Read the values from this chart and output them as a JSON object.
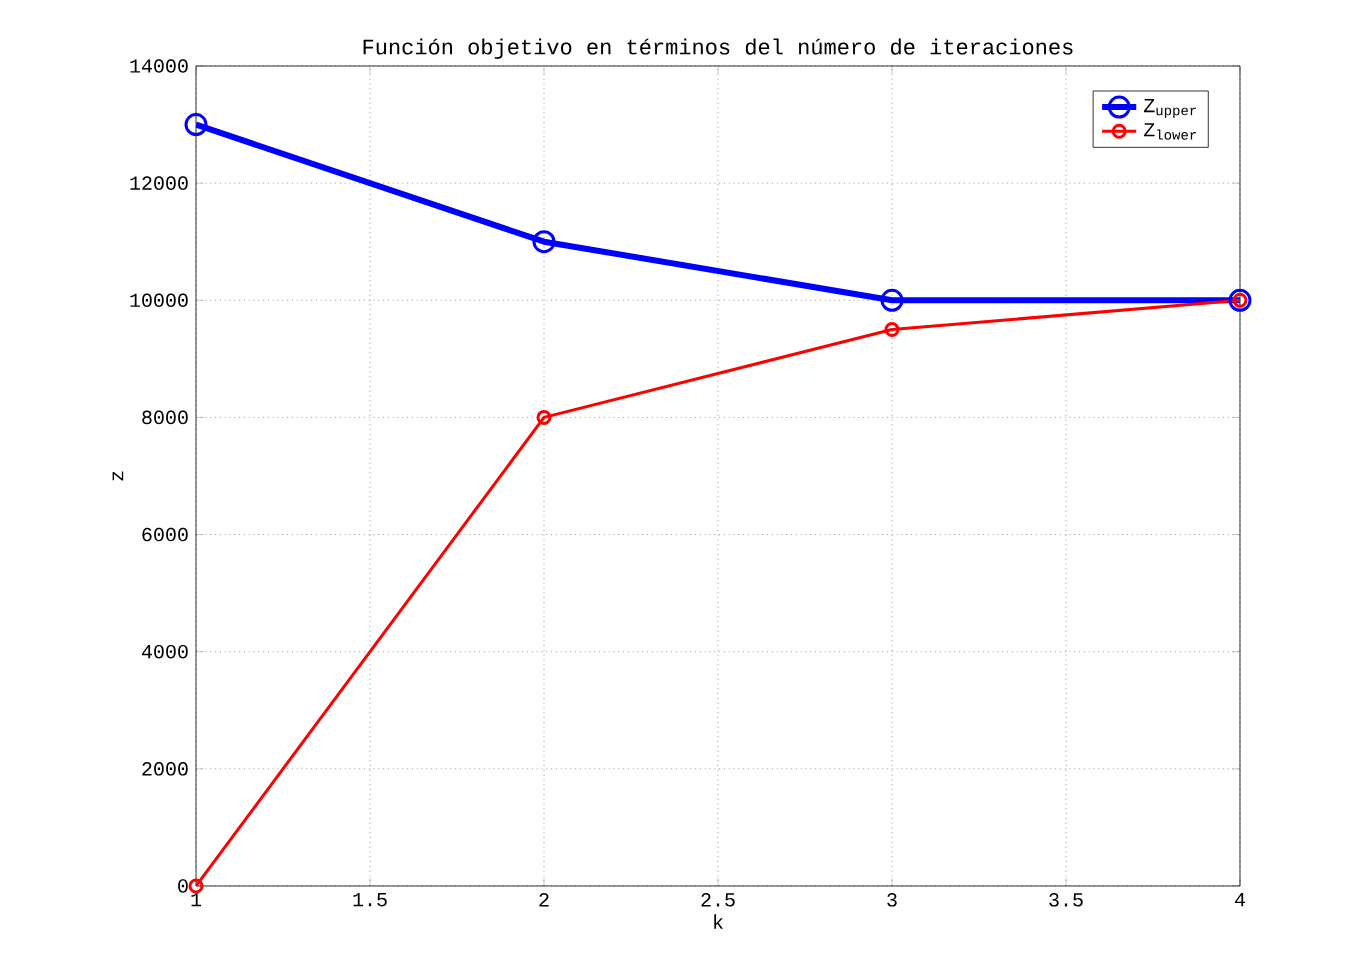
{
  "chart_data": {
    "type": "line",
    "title": "Función objetivo en términos del número de iteraciones",
    "xlabel": "k",
    "ylabel": "z",
    "x": [
      1,
      2,
      3,
      4
    ],
    "series": [
      {
        "name": "Z$_{upper}$",
        "color": "#0000ff",
        "values": [
          13000,
          11000,
          10000,
          10000
        ]
      },
      {
        "name": "Z$_{lower}$",
        "color": "#ff0000",
        "values": [
          0,
          8000,
          9500,
          10000
        ]
      }
    ],
    "xlim": [
      1,
      4
    ],
    "xticks": [
      1,
      1.5,
      2,
      2.5,
      3,
      3.5,
      4
    ],
    "ylim": [
      0,
      14000
    ],
    "yticks": [
      0,
      2000,
      4000,
      6000,
      8000,
      10000,
      12000,
      14000
    ],
    "grid": true,
    "legend": "top right",
    "marker": "circle",
    "line_style": "solid"
  }
}
